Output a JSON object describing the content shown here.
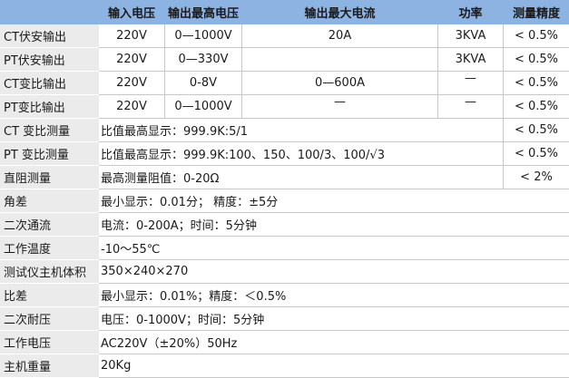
{
  "headers": [
    "",
    "输入电压",
    "输出最高电压",
    "输出最大电流",
    "功率",
    "测量精度"
  ],
  "output_rows": [
    {
      "label": "CT伏安输出",
      "input_v": "220V",
      "output_v": "0—1000V",
      "current": "20A",
      "power": "3KVA",
      "precision": "< 0.5%"
    },
    {
      "label": "PT伏安输出",
      "input_v": "220V",
      "output_v": "0—330V",
      "current": "",
      "power": "3KVA",
      "precision": "< 0.5%"
    },
    {
      "label": "CT变比输出",
      "input_v": "220V",
      "output_v": "0-8V",
      "current": "0—600A",
      "power": "—",
      "precision": "< 0.5%"
    },
    {
      "label": "PT变比输出",
      "input_v": "220V",
      "output_v": "0—1000V",
      "current": "—",
      "power": "—",
      "precision": "< 0.5%"
    }
  ],
  "measure_rows": [
    {
      "label": "CT 变比测量",
      "value": "比值最高显示：999.9K:5/1",
      "precision": "< 0.5%"
    },
    {
      "label": "PT 变比测量",
      "value": "比值最高显示：999.9K:100、150、100/3、100/√3",
      "precision": "< 0.5%"
    },
    {
      "label": "直阻测量",
      "value": "最高测量阻值：0-20Ω",
      "precision": "< 2%"
    }
  ],
  "spec_rows": [
    {
      "label": "角差",
      "value": "最小显示：0.01分； 精度：±5分"
    },
    {
      "label": "二次通流",
      "value": "电流：0-200A；时间：5分钟"
    },
    {
      "label": "工作温度",
      "value": "-10～55℃"
    },
    {
      "label": "测试仪主机体积",
      "value": "350×240×270"
    },
    {
      "label": "比差",
      "value": "最小显示：0.01%；精度：＜0.5%"
    },
    {
      "label": "二次耐压",
      "value": "电压：0-1000V；时间：5分钟"
    },
    {
      "label": "工作电压",
      "value": "AC220V（±20%）50Hz"
    },
    {
      "label": "主机重量",
      "value": "20Kg"
    }
  ],
  "colors": {
    "header_bg": "#8db3e2",
    "label_bg": "#ebebeb"
  }
}
